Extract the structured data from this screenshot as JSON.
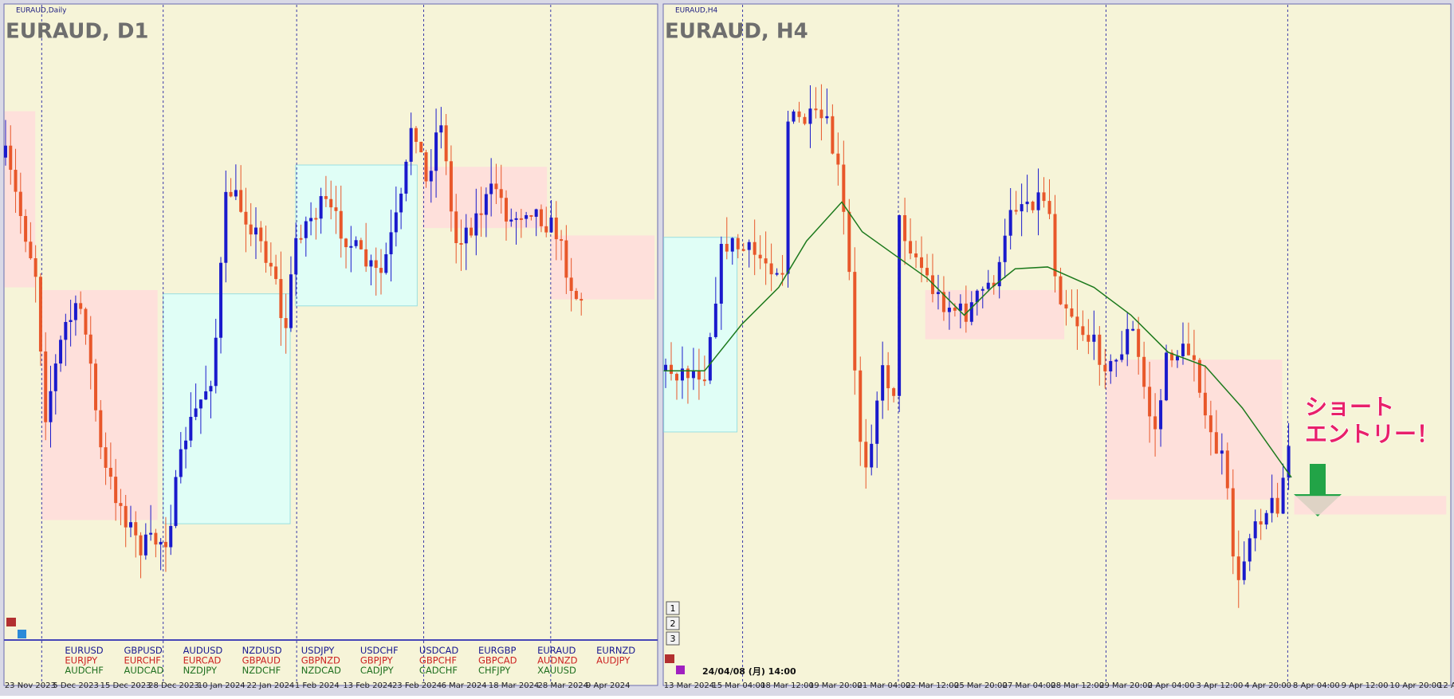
{
  "left_panel": {
    "label": "EURAUD,Daily",
    "title": "EURAUD, D1",
    "dates": [
      "23 Nov 2023",
      "5 Dec 2023",
      "15 Dec 2023",
      "28 Dec 2023",
      "10 Jan 2024",
      "22 Jan 2024",
      "1 Feb 2024",
      "13 Feb 2024",
      "23 Feb 2024",
      "6 Mar 2024",
      "18 Mar 2024",
      "28 Mar 2024",
      "9 Apr 2024"
    ],
    "symbols": [
      [
        "EURUSD",
        "EURJPY",
        "AUDCHF"
      ],
      [
        "GBPUSD",
        "EURCHF",
        "AUDCAD"
      ],
      [
        "AUDUSD",
        "EURCAD",
        "NZDJPY"
      ],
      [
        "NZDUSD",
        "GBPAUD",
        "NZDCHF"
      ],
      [
        "USDJPY",
        "GBPNZD",
        "NZDCAD"
      ],
      [
        "USDCHF",
        "GBPJPY",
        "CADJPY"
      ],
      [
        "USDCAD",
        "GBPCHF",
        "CADCHF"
      ],
      [
        "EURGBP",
        "GBPCAD",
        "CHFJPY"
      ],
      [
        "EURAUD",
        "AUDNZD",
        "XAUUSD"
      ],
      [
        "EURNZD",
        "AUDJPY"
      ]
    ]
  },
  "right_panel": {
    "label": "EURAUD,H4",
    "title": "EURAUD, H4",
    "dates": [
      "13 Mar 2024",
      "15 Mar 04:00",
      "18 Mar 12:00",
      "19 Mar 20:00",
      "21 Mar 04:00",
      "22 Mar 12:00",
      "25 Mar 20:00",
      "27 Mar 04:00",
      "28 Mar 12:00",
      "29 Mar 20:00",
      "2 Apr 04:00",
      "3 Apr 12:00",
      "4 Apr 20:00",
      "8 Apr 04:00",
      "9 Apr 12:00",
      "10 Apr 20:00",
      "12 A"
    ],
    "annotation": [
      "ショート",
      "エントリー！"
    ],
    "timestamp": "24/04/08 (月) 14:00",
    "buttons": [
      "1",
      "2",
      "3"
    ]
  }
}
